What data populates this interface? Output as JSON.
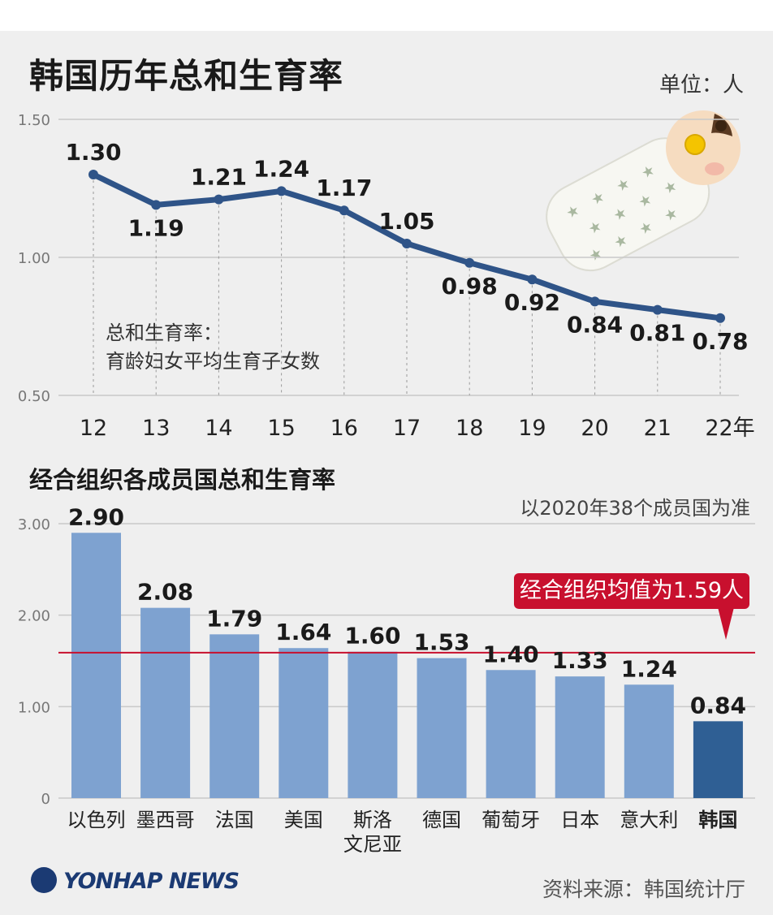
{
  "header": {
    "title": "韩国历年总和生育率",
    "unit": "单位：人"
  },
  "definition": {
    "line1": "总和生育率：",
    "line2": "育龄妇女平均生育子女数"
  },
  "chart2_header": {
    "title": "经合组织各成员国总和生育率",
    "note": "以2020年38个成员国为准",
    "avg_label": "经合组织均值为1.59人"
  },
  "footer": {
    "brand": "YONHAP NEWS",
    "source": "资料来源：韩国统计厅"
  },
  "colors": {
    "line": "#2f5488",
    "bar": "#7ea2d0",
    "bar_highlight": "#2f5f94",
    "avg_line": "#c8102e",
    "grid": "#c9c9c9"
  },
  "chart_data": [
    {
      "type": "line",
      "title": "韩国历年总和生育率",
      "x": [
        "12",
        "13",
        "14",
        "15",
        "16",
        "17",
        "18",
        "19",
        "20",
        "21",
        "22年"
      ],
      "values": [
        1.3,
        1.19,
        1.21,
        1.24,
        1.17,
        1.05,
        0.98,
        0.92,
        0.84,
        0.81,
        0.78
      ],
      "value_labels": [
        "1.30",
        "1.19",
        "1.21",
        "1.24",
        "1.17",
        "1.05",
        "0.98",
        "0.92",
        "0.84",
        "0.81",
        "0.78"
      ],
      "yticks": [
        "0.50",
        "1.00",
        "1.50"
      ],
      "ytick_values": [
        0.5,
        1.0,
        1.5
      ],
      "ylim": [
        0.5,
        1.5
      ],
      "grid": true
    },
    {
      "type": "bar",
      "title": "经合组织各成员国总和生育率",
      "categories": [
        "以色列",
        "墨西哥",
        "法国",
        "美国",
        "斯洛文尼亚",
        "德国",
        "葡萄牙",
        "日本",
        "意大利",
        "韩国"
      ],
      "category_lines": [
        [
          "以色列"
        ],
        [
          "墨西哥"
        ],
        [
          "法国"
        ],
        [
          "美国"
        ],
        [
          "斯洛",
          "文尼亚"
        ],
        [
          "德国"
        ],
        [
          "葡萄牙"
        ],
        [
          "日本"
        ],
        [
          "意大利"
        ],
        [
          "韩国"
        ]
      ],
      "values": [
        2.9,
        2.08,
        1.79,
        1.64,
        1.6,
        1.53,
        1.4,
        1.33,
        1.24,
        0.84
      ],
      "value_labels": [
        "2.90",
        "2.08",
        "1.79",
        "1.64",
        "1.60",
        "1.53",
        "1.40",
        "1.33",
        "1.24",
        "0.84"
      ],
      "highlight": "韩国",
      "average": 1.59,
      "yticks": [
        "0",
        "1.00",
        "2.00",
        "3.00"
      ],
      "ytick_values": [
        0,
        1,
        2,
        3
      ],
      "ylim": [
        0,
        3
      ],
      "grid": true
    }
  ]
}
